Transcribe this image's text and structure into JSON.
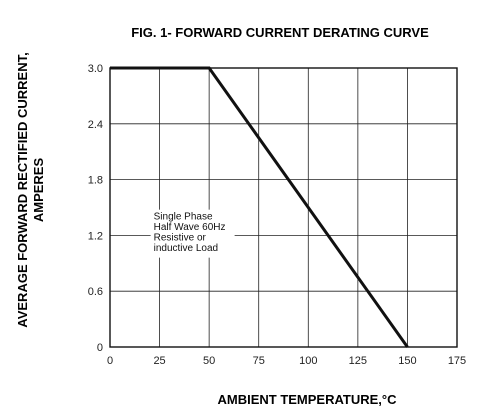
{
  "chart_data": {
    "type": "line",
    "title": "FIG. 1- FORWARD CURRENT DERATING CURVE",
    "xlabel": "AMBIENT TEMPERATURE,°C",
    "ylabel_line1": "AVERAGE FORWARD RECTIFIED CURRENT,",
    "ylabel_line2": "AMPERES",
    "xlim": [
      0,
      175
    ],
    "ylim": [
      0,
      3.0
    ],
    "x_ticks": [
      0,
      25,
      50,
      75,
      100,
      125,
      150,
      175
    ],
    "x_tick_labels": [
      "0",
      "25",
      "50",
      "75",
      "100",
      "125",
      "150",
      "175"
    ],
    "y_ticks": [
      0,
      0.6,
      1.2,
      1.8,
      2.4,
      3.0
    ],
    "y_tick_labels": [
      "0",
      "0.6",
      "1.2",
      "1.8",
      "2.4",
      "3.0"
    ],
    "grid": true,
    "series": [
      {
        "x": [
          0,
          50,
          150
        ],
        "y": [
          3.0,
          3.0,
          0
        ]
      }
    ],
    "annotation": [
      "Single Phase",
      "Half Wave 60Hz",
      "Resistive or",
      "inductive Load"
    ],
    "annotation_anchor": {
      "x": 22,
      "y": 1.2
    }
  }
}
